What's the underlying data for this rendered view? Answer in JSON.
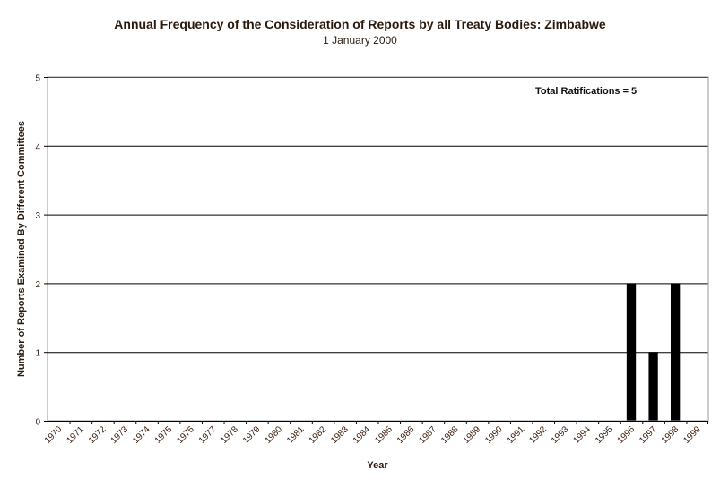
{
  "chart_data": {
    "type": "bar",
    "title": "Annual Frequency of the Consideration of Reports by all Treaty Bodies: Zimbabwe",
    "subtitle": "1 January 2000",
    "xlabel": "Year",
    "ylabel": "Number of Reports Examined By Different Committees",
    "annotation": "Total Ratifications = 5",
    "categories": [
      "1970",
      "1971",
      "1972",
      "1973",
      "1974",
      "1975",
      "1976",
      "1977",
      "1978",
      "1979",
      "1980",
      "1981",
      "1982",
      "1983",
      "1984",
      "1985",
      "1986",
      "1987",
      "1988",
      "1989",
      "1990",
      "1991",
      "1992",
      "1993",
      "1994",
      "1995",
      "1996",
      "1997",
      "1998",
      "1999"
    ],
    "values": [
      0,
      0,
      0,
      0,
      0,
      0,
      0,
      0,
      0,
      0,
      0,
      0,
      0,
      0,
      0,
      0,
      0,
      0,
      0,
      0,
      0,
      0,
      0,
      0,
      0,
      0,
      2,
      1,
      2,
      0
    ],
    "ylim": [
      0,
      5
    ],
    "yticks": [
      0,
      1,
      2,
      3,
      4,
      5
    ],
    "grid": true,
    "colors": {
      "bar": "#000000",
      "grid": "#000000",
      "text": "#3a1a0a"
    }
  }
}
